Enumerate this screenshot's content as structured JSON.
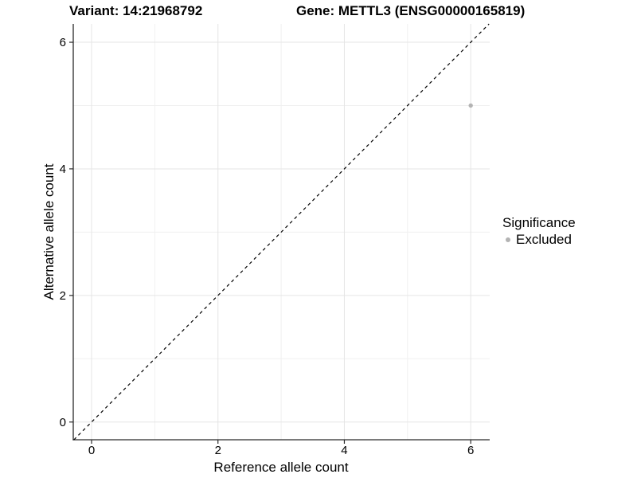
{
  "titles": {
    "variant": "Variant: 14:21968792",
    "gene": "Gene: METTL3 (ENSG00000165819)"
  },
  "legend": {
    "title": "Significance",
    "items": [
      {
        "label": "Excluded",
        "color": "#b3b3b3"
      }
    ]
  },
  "colors": {
    "background": "#ffffff",
    "text": "#000000",
    "axis_line": "#2b2b2b",
    "grid_major": "#e5e5e5",
    "grid_minor": "#f0f0f0",
    "point": "#b3b3b3",
    "reference_line": "#000000"
  },
  "chart_data": {
    "type": "scatter",
    "title": "Variant: 14:21968792  Gene: METTL3 (ENSG00000165819)",
    "xlabel": "Reference allele count",
    "ylabel": "Alternative allele count",
    "xlim": [
      -0.29,
      6.3
    ],
    "ylim": [
      -0.28,
      6.29
    ],
    "x_major_ticks": [
      0,
      2,
      4,
      6
    ],
    "x_minor_ticks": [
      1,
      3,
      5
    ],
    "y_major_ticks": [
      0,
      2,
      4,
      6
    ],
    "y_minor_ticks": [
      1,
      3,
      5
    ],
    "grid": true,
    "legend_position": "right",
    "reference_line": {
      "type": "abline",
      "slope": 1,
      "intercept": 0,
      "style": "dashed"
    },
    "series": [
      {
        "name": "Excluded",
        "color": "#b3b3b3",
        "points": [
          {
            "x": 6,
            "y": 5
          }
        ]
      }
    ],
    "tick_font_size": 15,
    "point_radius": 2.7
  }
}
